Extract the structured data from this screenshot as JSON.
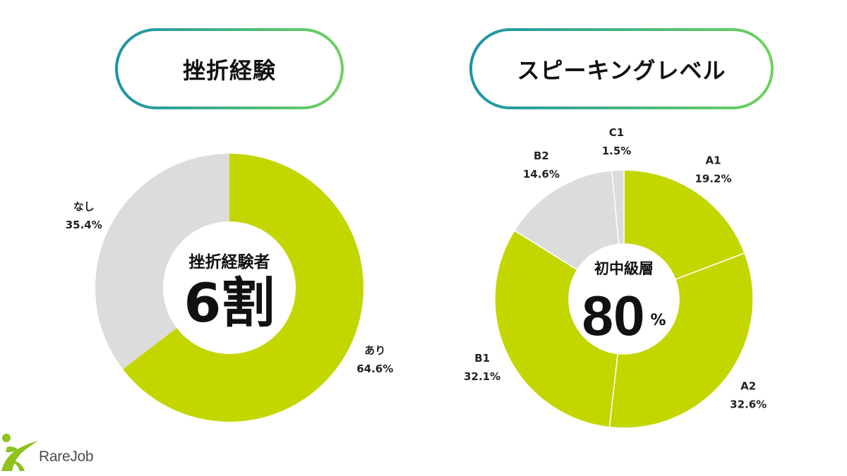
{
  "left_panel": {
    "center_caption": "挫折経験者",
    "center_value": "6割"
  },
  "right_panel": {
    "center_caption": "初中級層",
    "center_value": "80",
    "center_unit": "%"
  },
  "logo": {
    "text": "RareJob",
    "icon": "rarejob-figure-logo"
  },
  "colors": {
    "pill_gradient_start": "#1a93a8",
    "pill_gradient_end": "#6fd35b",
    "logo_green": "#8dc21f"
  },
  "chart_data": [
    {
      "type": "pie",
      "donut": true,
      "title": "挫折経験",
      "categories": [
        "あり",
        "なし"
      ],
      "values": [
        64.6,
        35.4
      ],
      "value_labels": [
        "64.6%",
        "35.4%"
      ],
      "colors": [
        "#c4d600",
        "#dcdcdc"
      ]
    },
    {
      "type": "pie",
      "donut": true,
      "title": "スピーキングレベル",
      "categories": [
        "A1",
        "A2",
        "B1",
        "B2",
        "C1"
      ],
      "values": [
        19.2,
        32.6,
        32.1,
        14.6,
        1.5
      ],
      "value_labels": [
        "19.2%",
        "32.6%",
        "32.1%",
        "14.6%",
        "1.5%"
      ],
      "colors": [
        "#c4d600",
        "#c4d600",
        "#c4d600",
        "#dcdcdc",
        "#dcdcdc"
      ]
    }
  ]
}
